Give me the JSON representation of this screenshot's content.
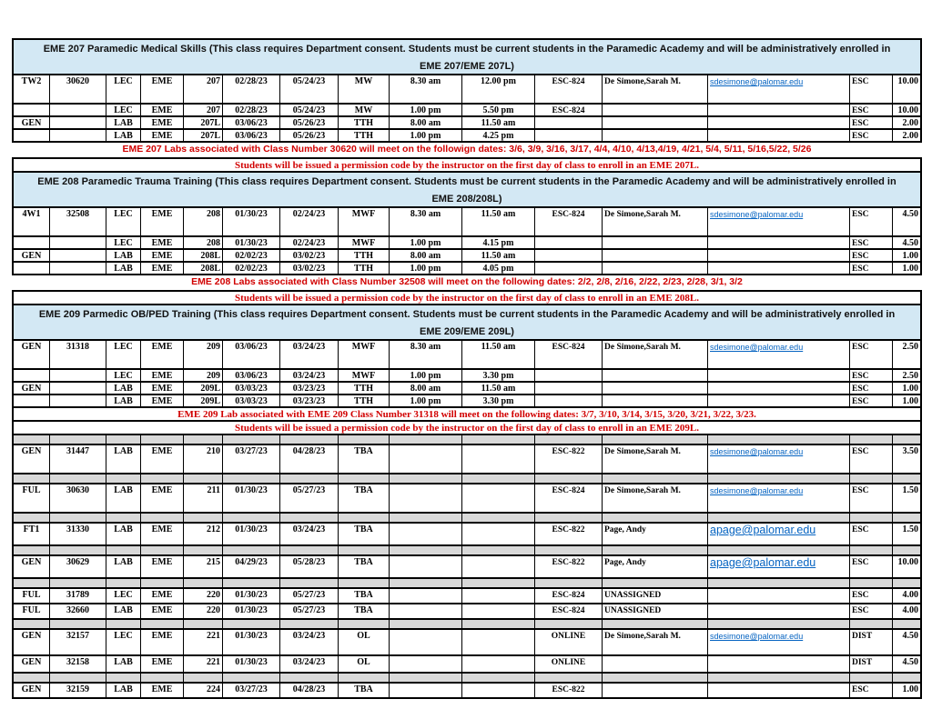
{
  "colors": {
    "section_header_bg": "#d3e8f4",
    "spacer_bg": "#d9d9d9",
    "warning_red": "#d10000",
    "link_blue": "#0563c1",
    "grid_black": "#000000"
  },
  "blocks": [
    {
      "type": "section_header",
      "line1": "EME 207 Paramedic Medical Skills   (This class requires Department consent.  Students must be current students in the Paramedic Academy and will be administratively enrolled in",
      "line2": "EME 207/EME 207L)"
    },
    {
      "type": "class_row",
      "size": "tall",
      "cells": {
        "session": "TW2",
        "class_number": "30620",
        "component": "LEC",
        "dept": "EME",
        "course": "207",
        "start_date": "02/28/23",
        "end_date": "05/24/23",
        "days": "MW",
        "start_time": "8.30 am",
        "end_time": "12.00 pm",
        "room": "ESC-824",
        "instructor": "De Simone,Sarah M.",
        "email": "sdesimone@palomar.edu",
        "location": "ESC",
        "units": "10.00"
      }
    },
    {
      "type": "class_row",
      "size": "short",
      "cells": {
        "session": "",
        "class_number": "",
        "component": "LEC",
        "dept": "EME",
        "course": "207",
        "start_date": "02/28/23",
        "end_date": "05/24/23",
        "days": "MW",
        "start_time": "1.00 pm",
        "end_time": "5.50 pm",
        "room": "ESC-824",
        "instructor": "",
        "email": "",
        "location": "ESC",
        "units": "10.00"
      }
    },
    {
      "type": "class_row",
      "size": "short",
      "cells": {
        "session": "GEN",
        "class_number": "",
        "component": "LAB",
        "dept": "EME",
        "course": "207L",
        "start_date": "03/06/23",
        "end_date": "05/26/23",
        "days": "TTH",
        "start_time": "8.00 am",
        "end_time": "11.50 am",
        "room": "",
        "instructor": "",
        "email": "",
        "location": "ESC",
        "units": "2.00"
      }
    },
    {
      "type": "class_row",
      "size": "short",
      "cells": {
        "session": "",
        "class_number": "",
        "component": "LAB",
        "dept": "EME",
        "course": "207L",
        "start_date": "03/06/23",
        "end_date": "05/26/23",
        "days": "TTH",
        "start_time": "1.00 pm",
        "end_time": "4.25 pm",
        "room": "",
        "instructor": "",
        "email": "",
        "location": "ESC",
        "units": "2.00"
      }
    },
    {
      "type": "note",
      "style": "sans",
      "bordered": false,
      "name": "eme207-lab-dates-note",
      "text": "EME 207 Labs associated with Class Number 30620 will meet on the followign dates: 3/6, 3/9, 3/16, 3/17, 4/4, 4/10, 4/13,4/19, 4/21, 5/4, 5/11, 5/16,5/22, 5/26"
    },
    {
      "type": "note",
      "style": "serif",
      "bordered": true,
      "name": "eme207-permission-note",
      "text": "Students will be issued a permission code by the instructor on the first day of class to enroll in an EME 207L."
    },
    {
      "type": "section_header",
      "line1": "EME 208 Paramedic Trauma Training  (This class requires Department consent.  Students must be current students in the Paramedic Academy and will be administratively enrolled in",
      "line2": "EME 208/208L)"
    },
    {
      "type": "class_row",
      "size": "tall",
      "cells": {
        "session": "4W1",
        "class_number": "32508",
        "component": "LEC",
        "dept": "EME",
        "course": "208",
        "start_date": "01/30/23",
        "end_date": "02/24/23",
        "days": "MWF",
        "start_time": "8.30 am",
        "end_time": "11.50 am",
        "room": "ESC-824",
        "instructor": "De Simone,Sarah M.",
        "email": "sdesimone@palomar.edu",
        "location": "ESC",
        "units": "4.50"
      }
    },
    {
      "type": "class_row",
      "size": "short",
      "cells": {
        "session": "",
        "class_number": "",
        "component": "LEC",
        "dept": "EME",
        "course": "208",
        "start_date": "01/30/23",
        "end_date": "02/24/23",
        "days": "MWF",
        "start_time": "1.00 pm",
        "end_time": "4.15 pm",
        "room": "",
        "instructor": "",
        "email": "",
        "location": "ESC",
        "units": "4.50"
      }
    },
    {
      "type": "class_row",
      "size": "short",
      "cells": {
        "session": "GEN",
        "class_number": "",
        "component": "LAB",
        "dept": "EME",
        "course": "208L",
        "start_date": "02/02/23",
        "end_date": "03/02/23",
        "days": "TTH",
        "start_time": "8.00 am",
        "end_time": "11.50 am",
        "room": "",
        "instructor": "",
        "email": "",
        "location": "ESC",
        "units": "1.00"
      }
    },
    {
      "type": "class_row",
      "size": "short",
      "cells": {
        "session": "",
        "class_number": "",
        "component": "LAB",
        "dept": "EME",
        "course": "208L",
        "start_date": "02/02/23",
        "end_date": "03/02/23",
        "days": "TTH",
        "start_time": "1.00 pm",
        "end_time": "4.05 pm",
        "room": "",
        "instructor": "",
        "email": "",
        "location": "ESC",
        "units": "1.00"
      }
    },
    {
      "type": "note",
      "style": "sans",
      "bordered": false,
      "name": "eme208-lab-dates-note",
      "text": "EME 208 Labs associated with Class Number 32508 will meet on the following dates: 2/2, 2/8, 2/16, 2/22, 2/23, 2/28, 3/1, 3/2"
    },
    {
      "type": "note",
      "style": "serif",
      "bordered": true,
      "name": "eme208-permission-note",
      "text": "Students will be issued a permission code by the instructor on the first day of class to enroll in an EME 208L."
    },
    {
      "type": "section_header",
      "line1": "EME 209 Parmedic OB/PED Training   (This class requires Department consent.  Students must be current students in the Paramedic Academy and will be administratively enrolled in",
      "line2": "EME 209/EME 209L)"
    },
    {
      "type": "class_row",
      "size": "tall",
      "cells": {
        "session": "GEN",
        "class_number": "31318",
        "component": "LEC",
        "dept": "EME",
        "course": "209",
        "start_date": "03/06/23",
        "end_date": "03/24/23",
        "days": "MWF",
        "start_time": "8.30 am",
        "end_time": "11.50 am",
        "room": "ESC-824",
        "instructor": "De Simone,Sarah M.",
        "email": "sdesimone@palomar.edu",
        "location": "ESC",
        "units": "2.50"
      }
    },
    {
      "type": "class_row",
      "size": "short",
      "cells": {
        "session": "",
        "class_number": "",
        "component": "LEC",
        "dept": "EME",
        "course": "209",
        "start_date": "03/06/23",
        "end_date": "03/24/23",
        "days": "MWF",
        "start_time": "1.00 pm",
        "end_time": "3.30 pm",
        "room": "",
        "instructor": "",
        "email": "",
        "location": "ESC",
        "units": "2.50"
      }
    },
    {
      "type": "class_row",
      "size": "short",
      "cells": {
        "session": "GEN",
        "class_number": "",
        "component": "LAB",
        "dept": "EME",
        "course": "209L",
        "start_date": "03/03/23",
        "end_date": "03/23/23",
        "days": "TTH",
        "start_time": "8.00 am",
        "end_time": "11.50 am",
        "room": "",
        "instructor": "",
        "email": "",
        "location": "ESC",
        "units": "1.00"
      }
    },
    {
      "type": "class_row",
      "size": "short",
      "cells": {
        "session": "",
        "class_number": "",
        "component": "LAB",
        "dept": "EME",
        "course": "209L",
        "start_date": "03/03/23",
        "end_date": "03/23/23",
        "days": "TTH",
        "start_time": "1.00 pm",
        "end_time": "3.30 pm",
        "room": "",
        "instructor": "",
        "email": "",
        "location": "ESC",
        "units": "1.00"
      }
    },
    {
      "type": "note",
      "style": "serif",
      "bordered": true,
      "name": "eme209-lab-dates-note",
      "text": "EME 209 Lab associated with EME 209 Class Number 31318 will meet on the following dates:  3/7, 3/10, 3/14, 3/15, 3/20, 3/21, 3/22, 3/23."
    },
    {
      "type": "note",
      "style": "serif",
      "bordered": true,
      "name": "eme209-permission-note",
      "text": "Students will be issued a permission code by the instructor on the first day of class to enroll in an EME 209L."
    },
    {
      "type": "spacer"
    },
    {
      "type": "class_row",
      "size": "tall",
      "cells": {
        "session": "GEN",
        "class_number": "31447",
        "component": "LAB",
        "dept": "EME",
        "course": "210",
        "start_date": "03/27/23",
        "end_date": "04/28/23",
        "days": "TBA",
        "start_time": "",
        "end_time": "",
        "room": "ESC-822",
        "instructor": "De Simone,Sarah M.",
        "email": "sdesimone@palomar.edu",
        "location": "ESC",
        "units": "3.50"
      }
    },
    {
      "type": "spacer"
    },
    {
      "type": "class_row",
      "size": "tall",
      "cells": {
        "session": "FUL",
        "class_number": "30630",
        "component": "LAB",
        "dept": "EME",
        "course": "211",
        "start_date": "01/30/23",
        "end_date": "05/27/23",
        "days": "TBA",
        "start_time": "",
        "end_time": "",
        "room": "ESC-824",
        "instructor": "De Simone,Sarah M.",
        "email": "sdesimone@palomar.edu",
        "location": "ESC",
        "units": "1.50"
      }
    },
    {
      "type": "spacer"
    },
    {
      "type": "class_row",
      "size": "mid",
      "email_size": "large",
      "cells": {
        "session": "FT1",
        "class_number": "31330",
        "component": "LAB",
        "dept": "EME",
        "course": "212",
        "start_date": "01/30/23",
        "end_date": "03/24/23",
        "days": "TBA",
        "start_time": "",
        "end_time": "",
        "room": "ESC-822",
        "instructor": "Page, Andy",
        "email": "apage@palomar.edu",
        "location": "ESC",
        "units": "1.50"
      }
    },
    {
      "type": "spacer"
    },
    {
      "type": "class_row",
      "size": "mid",
      "email_size": "large",
      "cells": {
        "session": "GEN",
        "class_number": "30629",
        "component": "LAB",
        "dept": "EME",
        "course": "215",
        "start_date": "04/29/23",
        "end_date": "05/28/23",
        "days": "TBA",
        "start_time": "",
        "end_time": "",
        "room": "ESC-822",
        "instructor": "Page, Andy",
        "email": "apage@palomar.edu",
        "location": "ESC",
        "units": "10.00"
      }
    },
    {
      "type": "spacer"
    },
    {
      "type": "class_row",
      "size": "s18",
      "cells": {
        "session": "FUL",
        "class_number": "31789",
        "component": "LEC",
        "dept": "EME",
        "course": "220",
        "start_date": "01/30/23",
        "end_date": "05/27/23",
        "days": "TBA",
        "start_time": "",
        "end_time": "",
        "room": "ESC-824",
        "instructor": "UNASSIGNED",
        "email": "",
        "location": "ESC",
        "units": "4.00"
      }
    },
    {
      "type": "class_row",
      "size": "s18",
      "cells": {
        "session": "FUL",
        "class_number": "32660",
        "component": "LAB",
        "dept": "EME",
        "course": "220",
        "start_date": "01/30/23",
        "end_date": "05/27/23",
        "days": "TBA",
        "start_time": "",
        "end_time": "",
        "room": "ESC-824",
        "instructor": "UNASSIGNED",
        "email": "",
        "location": "ESC",
        "units": "4.00"
      }
    },
    {
      "type": "spacer"
    },
    {
      "type": "class_row",
      "size": "m30",
      "cells": {
        "session": "GEN",
        "class_number": "32157",
        "component": "LEC",
        "dept": "EME",
        "course": "221",
        "start_date": "01/30/23",
        "end_date": "03/24/23",
        "days": "OL",
        "start_time": "",
        "end_time": "",
        "room": "ONLINE",
        "instructor": "De Simone,Sarah M.",
        "email": "sdesimone@palomar.edu",
        "location": "DIST",
        "units": "4.50"
      }
    },
    {
      "type": "class_row",
      "size": "s20",
      "cells": {
        "session": "GEN",
        "class_number": "32158",
        "component": "LAB",
        "dept": "EME",
        "course": "221",
        "start_date": "01/30/23",
        "end_date": "03/24/23",
        "days": "OL",
        "start_time": "",
        "end_time": "",
        "room": "ONLINE",
        "instructor": "",
        "email": "",
        "location": "DIST",
        "units": "4.50"
      }
    },
    {
      "type": "spacer"
    },
    {
      "type": "class_row",
      "size": "s18",
      "cells": {
        "session": "GEN",
        "class_number": "32159",
        "component": "LAB",
        "dept": "EME",
        "course": "224",
        "start_date": "03/27/23",
        "end_date": "04/28/23",
        "days": "TBA",
        "start_time": "",
        "end_time": "",
        "room": "ESC-822",
        "instructor": "",
        "email": "",
        "location": "ESC",
        "units": "1.00"
      }
    }
  ]
}
